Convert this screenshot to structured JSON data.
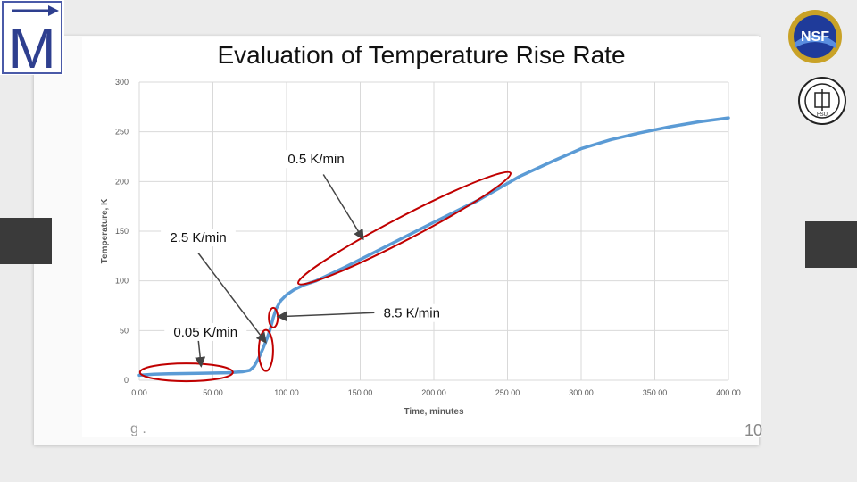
{
  "slide": {
    "title": "Evaluation of Temperature Rise Rate",
    "page_number_fragment": "10",
    "left_fragment": "g ."
  },
  "logos": {
    "left_logo": "M",
    "top_right_logo": "NSF",
    "seal": "FSU"
  },
  "colors": {
    "line": "#5b9bd5",
    "annotation": "#c00000",
    "grid": "#d9d9d9",
    "axis_text": "#595959"
  },
  "chart_data": {
    "type": "line",
    "title": "Evaluation of Temperature Rise Rate",
    "xlabel": "Time, minutes",
    "ylabel": "Temperature, K",
    "xlim": [
      0,
      400
    ],
    "ylim": [
      0,
      300
    ],
    "x_ticks": [
      "0.00",
      "50.00",
      "100.00",
      "150.00",
      "200.00",
      "250.00",
      "300.00",
      "350.00",
      "400.00"
    ],
    "y_ticks": [
      "0",
      "50",
      "100",
      "150",
      "200",
      "250",
      "300"
    ],
    "grid": true,
    "series": [
      {
        "name": "Temperature",
        "x": [
          0,
          10,
          20,
          40,
          60,
          70,
          75,
          78,
          81,
          84,
          87,
          89,
          91,
          93,
          96,
          100,
          105,
          112,
          120,
          140,
          160,
          180,
          200,
          230,
          258,
          280,
          300,
          320,
          340,
          360,
          380,
          400
        ],
        "y": [
          5,
          6,
          6.5,
          7,
          7.5,
          8.5,
          10,
          14,
          22,
          32,
          43,
          52,
          63,
          72,
          80,
          86,
          91,
          96,
          100,
          114,
          129,
          144,
          159,
          181,
          205,
          220,
          233,
          242,
          249,
          255,
          260,
          264
        ]
      }
    ],
    "annotations": [
      {
        "label": "0.05 K/min",
        "x": 45,
        "y": 45
      },
      {
        "label": "2.5 K/min",
        "x": 40,
        "y": 140
      },
      {
        "label": "8.5 K/min",
        "x": 185,
        "y": 64
      },
      {
        "label": "0.5 K/min",
        "x": 120,
        "y": 219
      }
    ]
  }
}
